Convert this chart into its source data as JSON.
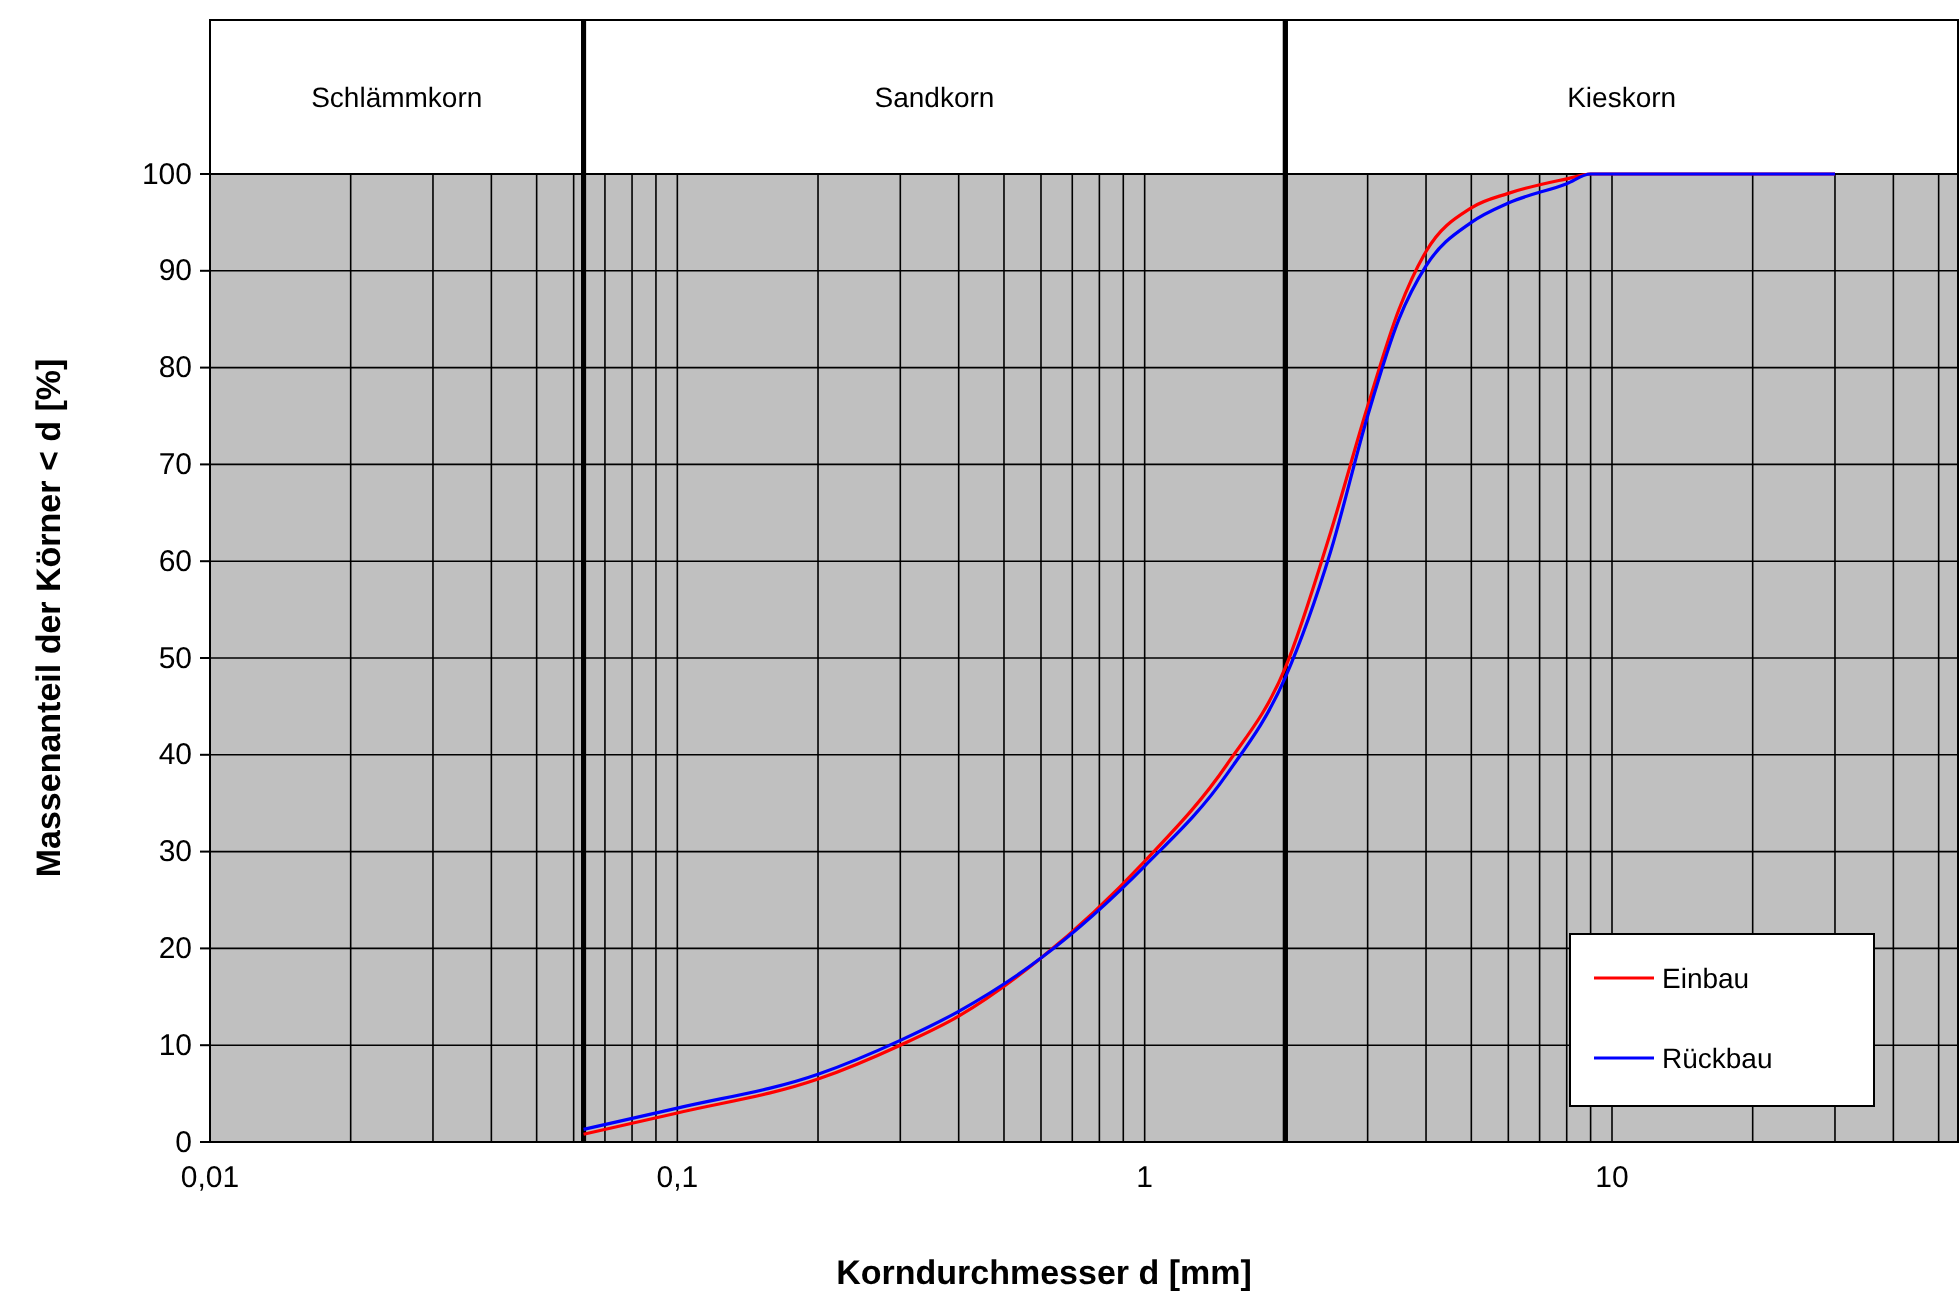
{
  "chart_data": {
    "type": "line",
    "xlabel": "Korndurchmesser d  [mm]",
    "ylabel": "Massenanteil der Körner < d [%]",
    "log": "x",
    "xlim": [
      0.01,
      55
    ],
    "ylim": [
      0,
      100
    ],
    "xticks": [
      {
        "value": 0.01,
        "label": "0,01"
      },
      {
        "value": 0.02,
        "label": null
      },
      {
        "value": 0.03,
        "label": null
      },
      {
        "value": 0.04,
        "label": null
      },
      {
        "value": 0.05,
        "label": null
      },
      {
        "value": 0.06,
        "label": null
      },
      {
        "value": 0.07,
        "label": null
      },
      {
        "value": 0.08,
        "label": null
      },
      {
        "value": 0.09,
        "label": null
      },
      {
        "value": 0.1,
        "label": "0,1"
      },
      {
        "value": 0.2,
        "label": null
      },
      {
        "value": 0.3,
        "label": null
      },
      {
        "value": 0.4,
        "label": null
      },
      {
        "value": 0.5,
        "label": null
      },
      {
        "value": 0.6,
        "label": null
      },
      {
        "value": 0.7,
        "label": null
      },
      {
        "value": 0.8,
        "label": null
      },
      {
        "value": 0.9,
        "label": null
      },
      {
        "value": 1,
        "label": "1"
      },
      {
        "value": 2,
        "label": null
      },
      {
        "value": 3,
        "label": null
      },
      {
        "value": 4,
        "label": null
      },
      {
        "value": 5,
        "label": null
      },
      {
        "value": 6,
        "label": null
      },
      {
        "value": 7,
        "label": null
      },
      {
        "value": 8,
        "label": null
      },
      {
        "value": 9,
        "label": null
      },
      {
        "value": 10,
        "label": "10"
      },
      {
        "value": 20,
        "label": null
      },
      {
        "value": 30,
        "label": null
      },
      {
        "value": 40,
        "label": null
      },
      {
        "value": 50,
        "label": null
      }
    ],
    "yticks": [
      0,
      10,
      20,
      30,
      40,
      50,
      60,
      70,
      80,
      90,
      100
    ],
    "grid": true,
    "legend": "bottom right",
    "marker": "none",
    "line_style": "solid",
    "bands": [
      {
        "axis": "x",
        "from": 0.01,
        "to": 0.063,
        "label": "Schlämmkorn",
        "color": "#c0c0c0"
      },
      {
        "axis": "x",
        "from": 0.063,
        "to": 2,
        "label": "Sandkorn",
        "color": "#c0c0c0"
      },
      {
        "axis": "x",
        "from": 2,
        "to": 55,
        "label": "Kieskorn",
        "color": "#c0c0c0"
      }
    ],
    "series": [
      {
        "name": "Einbau",
        "color": "#ff0000",
        "x": [
          0.063,
          0.1,
          0.2,
          0.3,
          0.4,
          0.6,
          1,
          1.5,
          2,
          2.5,
          3,
          3.5,
          4,
          5,
          6,
          8,
          9,
          10,
          30
        ],
        "values": [
          0.8,
          3,
          6.5,
          10,
          13,
          19,
          29,
          39,
          49,
          63,
          76,
          86,
          92,
          96.5,
          98,
          99.5,
          100,
          100,
          100
        ]
      },
      {
        "name": "Rückbau",
        "color": "#0000ff",
        "x": [
          0.063,
          0.1,
          0.2,
          0.3,
          0.4,
          0.6,
          1,
          1.5,
          2,
          2.5,
          3,
          3.5,
          4,
          5,
          6,
          8,
          9,
          10,
          30
        ],
        "values": [
          1.3,
          3.5,
          7,
          10.5,
          13.5,
          19,
          28.5,
          38,
          48,
          61,
          75,
          85,
          90.5,
          95,
          97,
          99,
          100,
          100,
          100
        ]
      }
    ]
  }
}
